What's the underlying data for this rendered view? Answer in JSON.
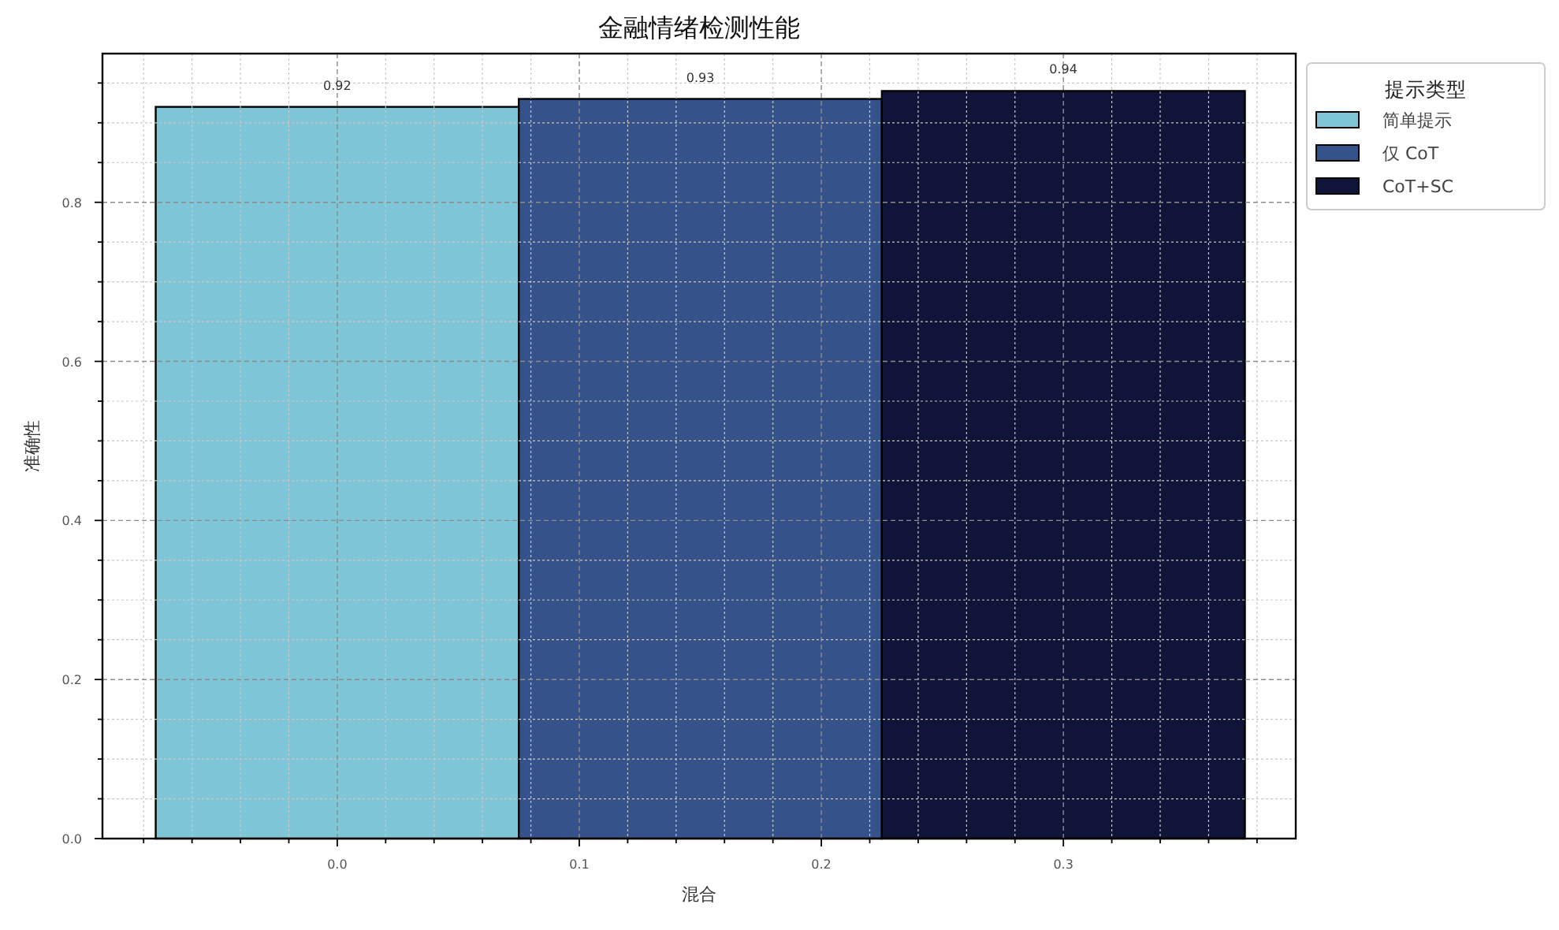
{
  "chart_data": {
    "type": "bar",
    "title": "金融情绪检测性能",
    "xlabel": "混合",
    "ylabel": "准确性",
    "legend_title": "提示类型",
    "series": [
      {
        "name": "简单提示",
        "color": "#7ec5d8",
        "x": [
          0
        ],
        "values": [
          0.92
        ]
      },
      {
        "name": "仅 CoT",
        "color": "#35528a",
        "x": [
          0.15
        ],
        "values": [
          0.93
        ]
      },
      {
        "name": "CoT+SC",
        "color": "#101439",
        "x": [
          0.3
        ],
        "values": [
          0.94
        ]
      }
    ],
    "xlim": [
      -0.097,
      0.396
    ],
    "ylim": [
      0,
      0.987
    ],
    "xticks": [
      {
        "value": -0.08,
        "label": null
      },
      {
        "value": -0.06,
        "label": null
      },
      {
        "value": -0.04,
        "label": null
      },
      {
        "value": -0.02,
        "label": null
      },
      {
        "value": 0,
        "label": "0.0"
      },
      {
        "value": 0.02,
        "label": null
      },
      {
        "value": 0.04,
        "label": null
      },
      {
        "value": 0.06,
        "label": null
      },
      {
        "value": 0.08,
        "label": null
      },
      0.1,
      {
        "value": 0.12,
        "label": null
      },
      {
        "value": 0.14,
        "label": null
      },
      {
        "value": 0.16,
        "label": null
      },
      {
        "value": 0.18,
        "label": null
      },
      0.2,
      {
        "value": 0.22,
        "label": null
      },
      {
        "value": 0.24,
        "label": null
      },
      {
        "value": 0.26,
        "label": null
      },
      {
        "value": 0.28,
        "label": null
      },
      0.3,
      {
        "value": 0.32,
        "label": null
      },
      {
        "value": 0.34,
        "label": null
      },
      {
        "value": 0.36,
        "label": null
      },
      {
        "value": 0.38,
        "label": null
      }
    ],
    "yticks": [
      {
        "value": 0,
        "label": "0.0"
      },
      {
        "value": 0.05,
        "label": null
      },
      {
        "value": 0.1,
        "label": null
      },
      {
        "value": 0.15,
        "label": null
      },
      0.2,
      {
        "value": 0.25,
        "label": null
      },
      {
        "value": 0.3,
        "label": null
      },
      {
        "value": 0.35,
        "label": null
      },
      0.4,
      {
        "value": 0.45,
        "label": null
      },
      {
        "value": 0.5,
        "label": null
      },
      {
        "value": 0.55,
        "label": null
      },
      0.6,
      {
        "value": 0.65,
        "label": null
      },
      {
        "value": 0.7,
        "label": null
      },
      {
        "value": 0.75,
        "label": null
      },
      0.8,
      {
        "value": 0.85,
        "label": null
      },
      {
        "value": 0.9,
        "label": null
      },
      {
        "value": 0.95,
        "label": null
      }
    ],
    "grid": true,
    "legend": "top right",
    "data_labels": true
  }
}
